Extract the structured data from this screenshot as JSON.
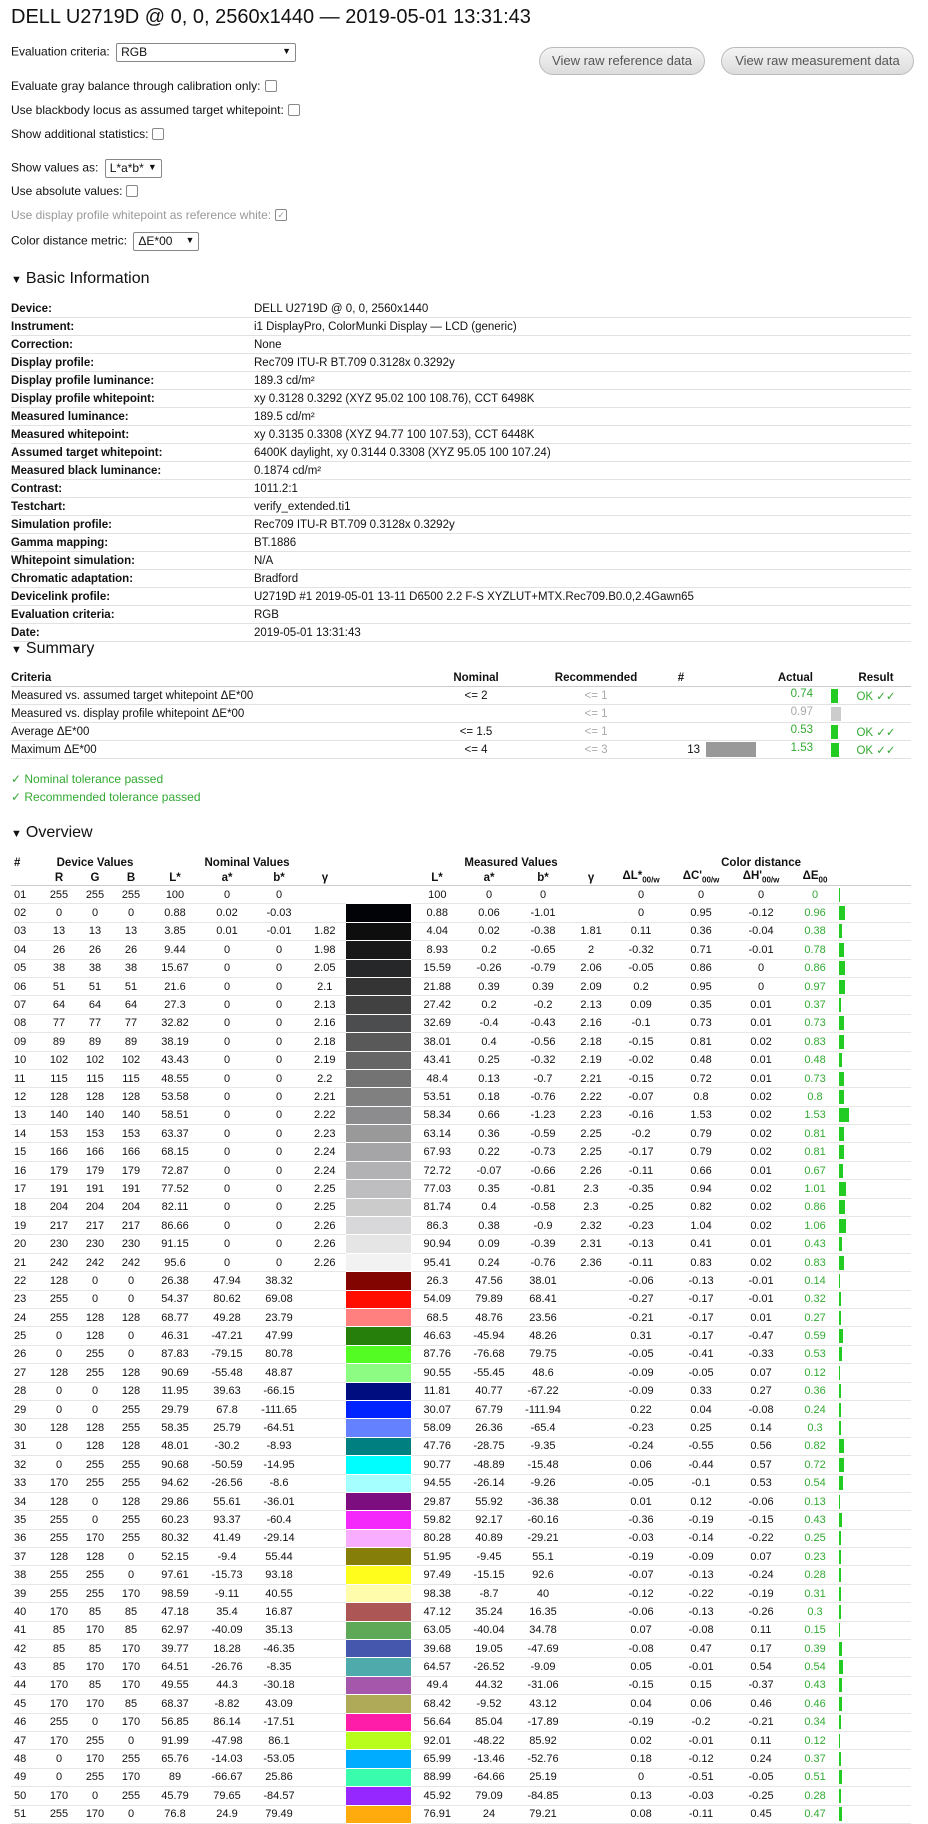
{
  "title": "DELL U2719D @ 0, 0, 2560x1440 — 2019-05-01 13:31:43",
  "controls": {
    "eval_label": "Evaluation criteria:",
    "eval_value": "RGB",
    "gray_label": "Evaluate gray balance through calibration only:",
    "blackbody_label": "Use blackbody locus as assumed target whitepoint:",
    "addstats_label": "Show additional statistics:",
    "showvals_label": "Show values as:",
    "showvals_value": "L*a*b*",
    "absvals_label": "Use absolute values:",
    "profwp_label": "Use display profile whitepoint as reference white:",
    "metric_label": "Color distance metric:",
    "metric_value": "ΔE*00",
    "btn_ref": "View raw reference data",
    "btn_meas": "View raw measurement data"
  },
  "sections": {
    "basic": "Basic Information",
    "summary": "Summary",
    "overview": "Overview"
  },
  "basic_info": [
    [
      "Device:",
      "DELL U2719D @ 0, 0, 2560x1440"
    ],
    [
      "Instrument:",
      "i1 DisplayPro, ColorMunki Display — LCD (generic)"
    ],
    [
      "Correction:",
      "None"
    ],
    [
      "Display profile:",
      "Rec709 ITU-R BT.709 0.3128x 0.3292y"
    ],
    [
      "Display profile luminance:",
      "189.3 cd/m²"
    ],
    [
      "Display profile whitepoint:",
      "xy 0.3128 0.3292 (XYZ 95.02 100 108.76), CCT 6498K"
    ],
    [
      "Measured luminance:",
      "189.5 cd/m²"
    ],
    [
      "Measured whitepoint:",
      "xy 0.3135 0.3308 (XYZ 94.77 100 107.53), CCT 6448K"
    ],
    [
      "Assumed target whitepoint:",
      "6400K daylight, xy 0.3144 0.3308 (XYZ 95.05 100 107.24)"
    ],
    [
      "Measured black luminance:",
      "0.1874 cd/m²"
    ],
    [
      "Contrast:",
      "1011.2:1"
    ],
    [
      "Testchart:",
      "verify_extended.ti1"
    ],
    [
      "Simulation profile:",
      "Rec709 ITU-R BT.709 0.3128x 0.3292y"
    ],
    [
      "Gamma mapping:",
      "BT.1886"
    ],
    [
      "Whitepoint simulation:",
      "N/A"
    ],
    [
      "Chromatic adaptation:",
      "Bradford"
    ],
    [
      "Devicelink profile:",
      "U2719D #1 2019-05-01 13-11 D6500 2.2 F-S XYZLUT+MTX.Rec709.B0.0,2.4Gawn65"
    ],
    [
      "Evaluation criteria:",
      "RGB"
    ],
    [
      "Date:",
      "2019-05-01 13:31:43"
    ]
  ],
  "summary": {
    "headers": [
      "Criteria",
      "Nominal",
      "Recommended",
      "#",
      "Actual",
      "Result"
    ],
    "rows": [
      {
        "c": "Measured vs. assumed target whitepoint ΔE*00",
        "n": "<= 2",
        "r": "<= 1",
        "h": "",
        "a": "0.74",
        "res": "OK ✓✓",
        "bar": 0.37,
        "ok": true
      },
      {
        "c": "Measured vs. display profile whitepoint ΔE*00",
        "n": "",
        "r": "<= 1",
        "h": "",
        "a": "0.97",
        "res": "",
        "bar": 0.49,
        "ok": false
      },
      {
        "c": "Average ΔE*00",
        "n": "<= 1.5",
        "r": "<= 1",
        "h": "",
        "a": "0.53",
        "res": "OK ✓✓",
        "bar": 0.35,
        "ok": true
      },
      {
        "c": "Maximum ΔE*00",
        "n": "<= 4",
        "r": "<= 3",
        "h": "13",
        "a": "1.53",
        "res": "OK ✓✓",
        "bar": 0.38,
        "ok": true
      }
    ],
    "pass1": "✓ Nominal tolerance passed",
    "pass2": "✓ Recommended tolerance passed"
  },
  "overview": {
    "groups": [
      "#",
      "Device Values",
      "Nominal Values",
      "Measured Values",
      "Color distance"
    ],
    "headers": [
      "R",
      "G",
      "B",
      "L*",
      "a*",
      "b*",
      "γ",
      "L*",
      "a*",
      "b*",
      "γ"
    ],
    "rows": [
      [
        "01",
        "255",
        "255",
        "255",
        "100",
        "0",
        "0",
        "",
        "100",
        "0",
        "0",
        "",
        "0",
        "0",
        "0",
        "0"
      ],
      [
        "02",
        "0",
        "0",
        "0",
        "0.88",
        "0.02",
        "-0.03",
        "",
        "0.88",
        "0.06",
        "-1.01",
        "",
        "0",
        "0.95",
        "-0.12",
        "0.96"
      ],
      [
        "03",
        "13",
        "13",
        "13",
        "3.85",
        "0.01",
        "-0.01",
        "1.82",
        "4.04",
        "0.02",
        "-0.38",
        "1.81",
        "0.11",
        "0.36",
        "-0.04",
        "0.38"
      ],
      [
        "04",
        "26",
        "26",
        "26",
        "9.44",
        "0",
        "0",
        "1.98",
        "8.93",
        "0.2",
        "-0.65",
        "2",
        "-0.32",
        "0.71",
        "-0.01",
        "0.78"
      ],
      [
        "05",
        "38",
        "38",
        "38",
        "15.67",
        "0",
        "0",
        "2.05",
        "15.59",
        "-0.26",
        "-0.79",
        "2.06",
        "-0.05",
        "0.86",
        "0",
        "0.86"
      ],
      [
        "06",
        "51",
        "51",
        "51",
        "21.6",
        "0",
        "0",
        "2.1",
        "21.88",
        "0.39",
        "0.39",
        "2.09",
        "0.2",
        "0.95",
        "0",
        "0.97"
      ],
      [
        "07",
        "64",
        "64",
        "64",
        "27.3",
        "0",
        "0",
        "2.13",
        "27.42",
        "0.2",
        "-0.2",
        "2.13",
        "0.09",
        "0.35",
        "0.01",
        "0.37"
      ],
      [
        "08",
        "77",
        "77",
        "77",
        "32.82",
        "0",
        "0",
        "2.16",
        "32.69",
        "-0.4",
        "-0.43",
        "2.16",
        "-0.1",
        "0.73",
        "0.01",
        "0.73"
      ],
      [
        "09",
        "89",
        "89",
        "89",
        "38.19",
        "0",
        "0",
        "2.18",
        "38.01",
        "0.4",
        "-0.56",
        "2.18",
        "-0.15",
        "0.81",
        "0.02",
        "0.83"
      ],
      [
        "10",
        "102",
        "102",
        "102",
        "43.43",
        "0",
        "0",
        "2.19",
        "43.41",
        "0.25",
        "-0.32",
        "2.19",
        "-0.02",
        "0.48",
        "0.01",
        "0.48"
      ],
      [
        "11",
        "115",
        "115",
        "115",
        "48.55",
        "0",
        "0",
        "2.2",
        "48.4",
        "0.13",
        "-0.7",
        "2.21",
        "-0.15",
        "0.72",
        "0.01",
        "0.73"
      ],
      [
        "12",
        "128",
        "128",
        "128",
        "53.58",
        "0",
        "0",
        "2.21",
        "53.51",
        "0.18",
        "-0.76",
        "2.22",
        "-0.07",
        "0.8",
        "0.02",
        "0.8"
      ],
      [
        "13",
        "140",
        "140",
        "140",
        "58.51",
        "0",
        "0",
        "2.22",
        "58.34",
        "0.66",
        "-1.23",
        "2.23",
        "-0.16",
        "1.53",
        "0.02",
        "1.53"
      ],
      [
        "14",
        "153",
        "153",
        "153",
        "63.37",
        "0",
        "0",
        "2.23",
        "63.14",
        "0.36",
        "-0.59",
        "2.25",
        "-0.2",
        "0.79",
        "0.02",
        "0.81"
      ],
      [
        "15",
        "166",
        "166",
        "166",
        "68.15",
        "0",
        "0",
        "2.24",
        "67.93",
        "0.22",
        "-0.73",
        "2.25",
        "-0.17",
        "0.79",
        "0.02",
        "0.81"
      ],
      [
        "16",
        "179",
        "179",
        "179",
        "72.87",
        "0",
        "0",
        "2.24",
        "72.72",
        "-0.07",
        "-0.66",
        "2.26",
        "-0.11",
        "0.66",
        "0.01",
        "0.67"
      ],
      [
        "17",
        "191",
        "191",
        "191",
        "77.52",
        "0",
        "0",
        "2.25",
        "77.03",
        "0.35",
        "-0.81",
        "2.3",
        "-0.35",
        "0.94",
        "0.02",
        "1.01"
      ],
      [
        "18",
        "204",
        "204",
        "204",
        "82.11",
        "0",
        "0",
        "2.25",
        "81.74",
        "0.4",
        "-0.58",
        "2.3",
        "-0.25",
        "0.82",
        "0.02",
        "0.86"
      ],
      [
        "19",
        "217",
        "217",
        "217",
        "86.66",
        "0",
        "0",
        "2.26",
        "86.3",
        "0.38",
        "-0.9",
        "2.32",
        "-0.23",
        "1.04",
        "0.02",
        "1.06"
      ],
      [
        "20",
        "230",
        "230",
        "230",
        "91.15",
        "0",
        "0",
        "2.26",
        "90.94",
        "0.09",
        "-0.39",
        "2.31",
        "-0.13",
        "0.41",
        "0.01",
        "0.43"
      ],
      [
        "21",
        "242",
        "242",
        "242",
        "95.6",
        "0",
        "0",
        "2.26",
        "95.41",
        "0.24",
        "-0.76",
        "2.36",
        "-0.11",
        "0.83",
        "0.02",
        "0.83"
      ],
      [
        "22",
        "128",
        "0",
        "0",
        "26.38",
        "47.94",
        "38.32",
        "",
        "26.3",
        "47.56",
        "38.01",
        "",
        "-0.06",
        "-0.13",
        "-0.01",
        "0.14"
      ],
      [
        "23",
        "255",
        "0",
        "0",
        "54.37",
        "80.62",
        "69.08",
        "",
        "54.09",
        "79.89",
        "68.41",
        "",
        "-0.27",
        "-0.17",
        "-0.01",
        "0.32"
      ],
      [
        "24",
        "255",
        "128",
        "128",
        "68.77",
        "49.28",
        "23.79",
        "",
        "68.5",
        "48.76",
        "23.56",
        "",
        "-0.21",
        "-0.17",
        "0.01",
        "0.27"
      ],
      [
        "25",
        "0",
        "128",
        "0",
        "46.31",
        "-47.21",
        "47.99",
        "",
        "46.63",
        "-45.94",
        "48.26",
        "",
        "0.31",
        "-0.17",
        "-0.47",
        "0.59"
      ],
      [
        "26",
        "0",
        "255",
        "0",
        "87.83",
        "-79.15",
        "80.78",
        "",
        "87.76",
        "-76.68",
        "79.75",
        "",
        "-0.05",
        "-0.41",
        "-0.33",
        "0.53"
      ],
      [
        "27",
        "128",
        "255",
        "128",
        "90.69",
        "-55.48",
        "48.87",
        "",
        "90.55",
        "-55.45",
        "48.6",
        "",
        "-0.09",
        "-0.05",
        "0.07",
        "0.12"
      ],
      [
        "28",
        "0",
        "0",
        "128",
        "11.95",
        "39.63",
        "-66.15",
        "",
        "11.81",
        "40.77",
        "-67.22",
        "",
        "-0.09",
        "0.33",
        "0.27",
        "0.36"
      ],
      [
        "29",
        "0",
        "0",
        "255",
        "29.79",
        "67.8",
        "-111.65",
        "",
        "30.07",
        "67.79",
        "-111.94",
        "",
        "0.22",
        "0.04",
        "-0.08",
        "0.24"
      ],
      [
        "30",
        "128",
        "128",
        "255",
        "58.35",
        "25.79",
        "-64.51",
        "",
        "58.09",
        "26.36",
        "-65.4",
        "",
        "-0.23",
        "0.25",
        "0.14",
        "0.3"
      ],
      [
        "31",
        "0",
        "128",
        "128",
        "48.01",
        "-30.2",
        "-8.93",
        "",
        "47.76",
        "-28.75",
        "-9.35",
        "",
        "-0.24",
        "-0.55",
        "0.56",
        "0.82"
      ],
      [
        "32",
        "0",
        "255",
        "255",
        "90.68",
        "-50.59",
        "-14.95",
        "",
        "90.77",
        "-48.89",
        "-15.48",
        "",
        "0.06",
        "-0.44",
        "0.57",
        "0.72"
      ],
      [
        "33",
        "170",
        "255",
        "255",
        "94.62",
        "-26.56",
        "-8.6",
        "",
        "94.55",
        "-26.14",
        "-9.26",
        "",
        "-0.05",
        "-0.1",
        "0.53",
        "0.54"
      ],
      [
        "34",
        "128",
        "0",
        "128",
        "29.86",
        "55.61",
        "-36.01",
        "",
        "29.87",
        "55.92",
        "-36.38",
        "",
        "0.01",
        "0.12",
        "-0.06",
        "0.13"
      ],
      [
        "35",
        "255",
        "0",
        "255",
        "60.23",
        "93.37",
        "-60.4",
        "",
        "59.82",
        "92.17",
        "-60.16",
        "",
        "-0.36",
        "-0.19",
        "-0.15",
        "0.43"
      ],
      [
        "36",
        "255",
        "170",
        "255",
        "80.32",
        "41.49",
        "-29.14",
        "",
        "80.28",
        "40.89",
        "-29.21",
        "",
        "-0.03",
        "-0.14",
        "-0.22",
        "0.25"
      ],
      [
        "37",
        "128",
        "128",
        "0",
        "52.15",
        "-9.4",
        "55.44",
        "",
        "51.95",
        "-9.45",
        "55.1",
        "",
        "-0.19",
        "-0.09",
        "0.07",
        "0.23"
      ],
      [
        "38",
        "255",
        "255",
        "0",
        "97.61",
        "-15.73",
        "93.18",
        "",
        "97.49",
        "-15.15",
        "92.6",
        "",
        "-0.07",
        "-0.13",
        "-0.24",
        "0.28"
      ],
      [
        "39",
        "255",
        "255",
        "170",
        "98.59",
        "-9.11",
        "40.55",
        "",
        "98.38",
        "-8.7",
        "40",
        "",
        "-0.12",
        "-0.22",
        "-0.19",
        "0.31"
      ],
      [
        "40",
        "170",
        "85",
        "85",
        "47.18",
        "35.4",
        "16.87",
        "",
        "47.12",
        "35.24",
        "16.35",
        "",
        "-0.06",
        "-0.13",
        "-0.26",
        "0.3"
      ],
      [
        "41",
        "85",
        "170",
        "85",
        "62.97",
        "-40.09",
        "35.13",
        "",
        "63.05",
        "-40.04",
        "34.78",
        "",
        "0.07",
        "-0.08",
        "0.11",
        "0.15"
      ],
      [
        "42",
        "85",
        "85",
        "170",
        "39.77",
        "18.28",
        "-46.35",
        "",
        "39.68",
        "19.05",
        "-47.69",
        "",
        "-0.08",
        "0.47",
        "0.17",
        "0.39"
      ],
      [
        "43",
        "85",
        "170",
        "170",
        "64.51",
        "-26.76",
        "-8.35",
        "",
        "64.57",
        "-26.52",
        "-9.09",
        "",
        "0.05",
        "-0.01",
        "0.54",
        "0.54"
      ],
      [
        "44",
        "170",
        "85",
        "170",
        "49.55",
        "44.3",
        "-30.18",
        "",
        "49.4",
        "44.32",
        "-31.06",
        "",
        "-0.15",
        "0.15",
        "-0.37",
        "0.43"
      ],
      [
        "45",
        "170",
        "170",
        "85",
        "68.37",
        "-8.82",
        "43.09",
        "",
        "68.42",
        "-9.52",
        "43.12",
        "",
        "0.04",
        "0.06",
        "0.46",
        "0.46"
      ],
      [
        "46",
        "255",
        "0",
        "170",
        "56.85",
        "86.14",
        "-17.51",
        "",
        "56.64",
        "85.04",
        "-17.89",
        "",
        "-0.19",
        "-0.2",
        "-0.21",
        "0.34"
      ],
      [
        "47",
        "170",
        "255",
        "0",
        "91.99",
        "-47.98",
        "86.1",
        "",
        "92.01",
        "-48.22",
        "85.92",
        "",
        "0.02",
        "-0.01",
        "0.11",
        "0.12"
      ],
      [
        "48",
        "0",
        "170",
        "255",
        "65.76",
        "-14.03",
        "-53.05",
        "",
        "65.99",
        "-13.46",
        "-52.76",
        "",
        "0.18",
        "-0.12",
        "0.24",
        "0.37"
      ],
      [
        "49",
        "0",
        "255",
        "170",
        "89",
        "-66.67",
        "25.86",
        "",
        "88.99",
        "-64.66",
        "25.19",
        "",
        "0",
        "-0.51",
        "-0.05",
        "0.51"
      ],
      [
        "50",
        "170",
        "0",
        "255",
        "45.79",
        "79.65",
        "-84.57",
        "",
        "45.92",
        "79.09",
        "-84.85",
        "",
        "0.13",
        "-0.03",
        "-0.25",
        "0.28"
      ],
      [
        "51",
        "255",
        "170",
        "0",
        "76.8",
        "24.9",
        "79.49",
        "",
        "76.91",
        "24",
        "79.21",
        "",
        "0.08",
        "-0.11",
        "0.45",
        "0.47"
      ]
    ]
  }
}
